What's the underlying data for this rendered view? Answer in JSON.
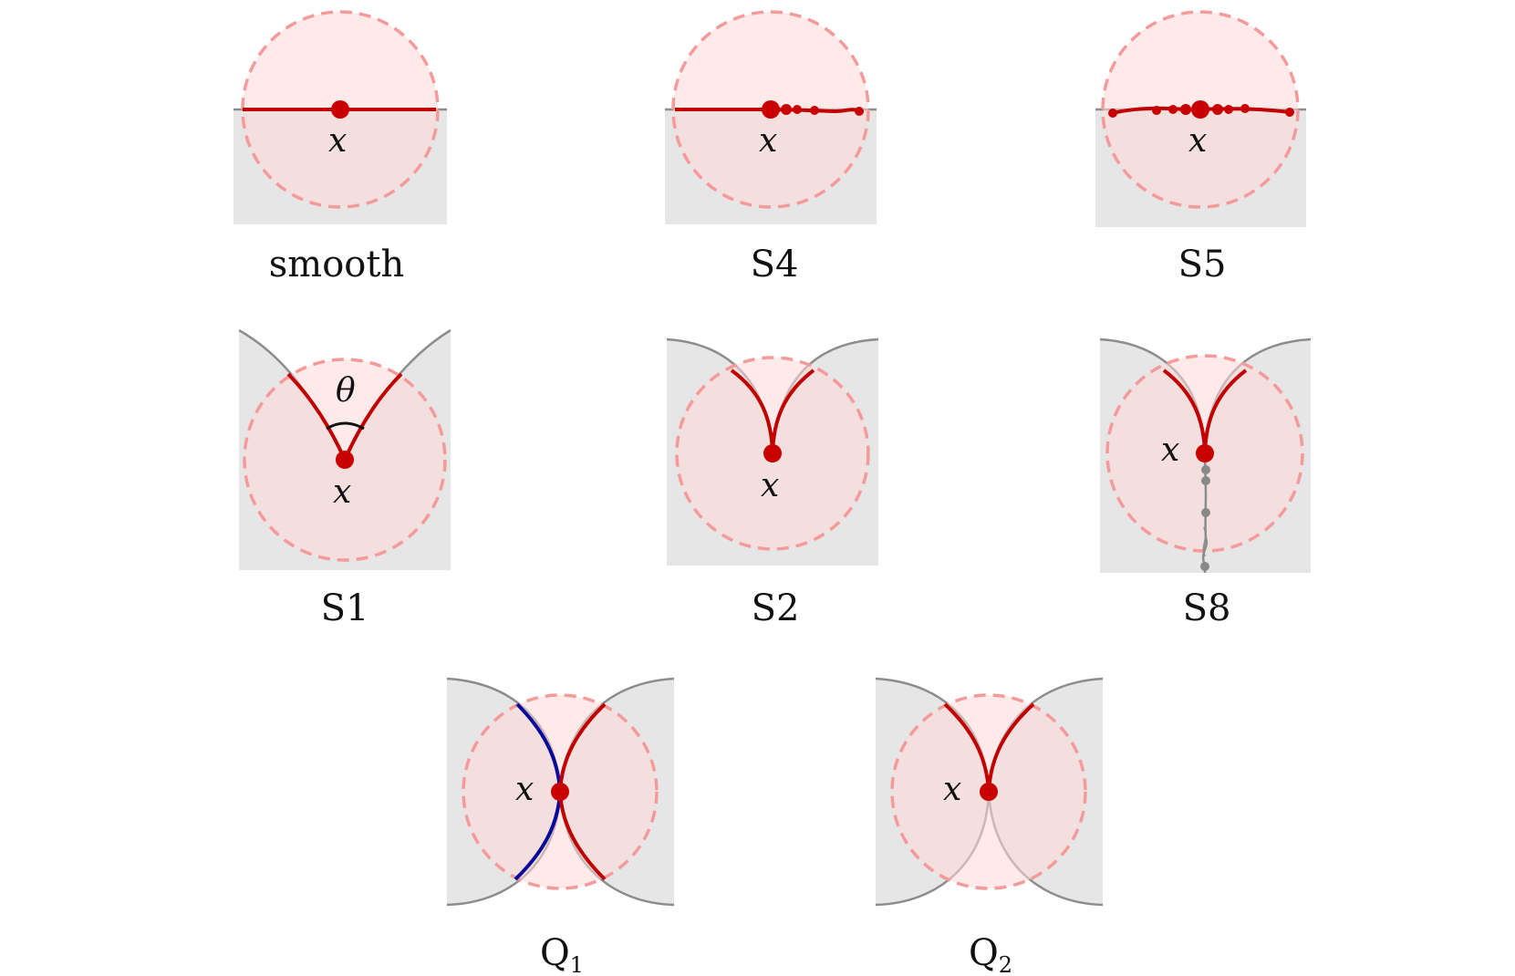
{
  "panels": [
    {
      "id": "smooth",
      "caption": "smooth",
      "point_label": "x"
    },
    {
      "id": "s4",
      "caption": "S4",
      "point_label": "x"
    },
    {
      "id": "s5",
      "caption": "S5",
      "point_label": "x"
    },
    {
      "id": "s1",
      "caption": "S1",
      "point_label": "x",
      "angle_label": "θ"
    },
    {
      "id": "s2",
      "caption": "S2",
      "point_label": "x"
    },
    {
      "id": "s8",
      "caption": "S8",
      "point_label": "x"
    },
    {
      "id": "q1",
      "caption": "Q",
      "caption_sub": "1",
      "point_label": "x"
    },
    {
      "id": "q2",
      "caption": "Q",
      "caption_sub": "2",
      "point_label": "x"
    }
  ],
  "colors": {
    "region_fill": "#e6e6e6",
    "disk_fill": "#ffe8e8",
    "disk_stroke": "#f59a9a",
    "interface_red": "#c00000",
    "interface_blue": "#0a0a9a",
    "boundary_gray": "#8c8c8c",
    "point_red": "#c80000"
  }
}
